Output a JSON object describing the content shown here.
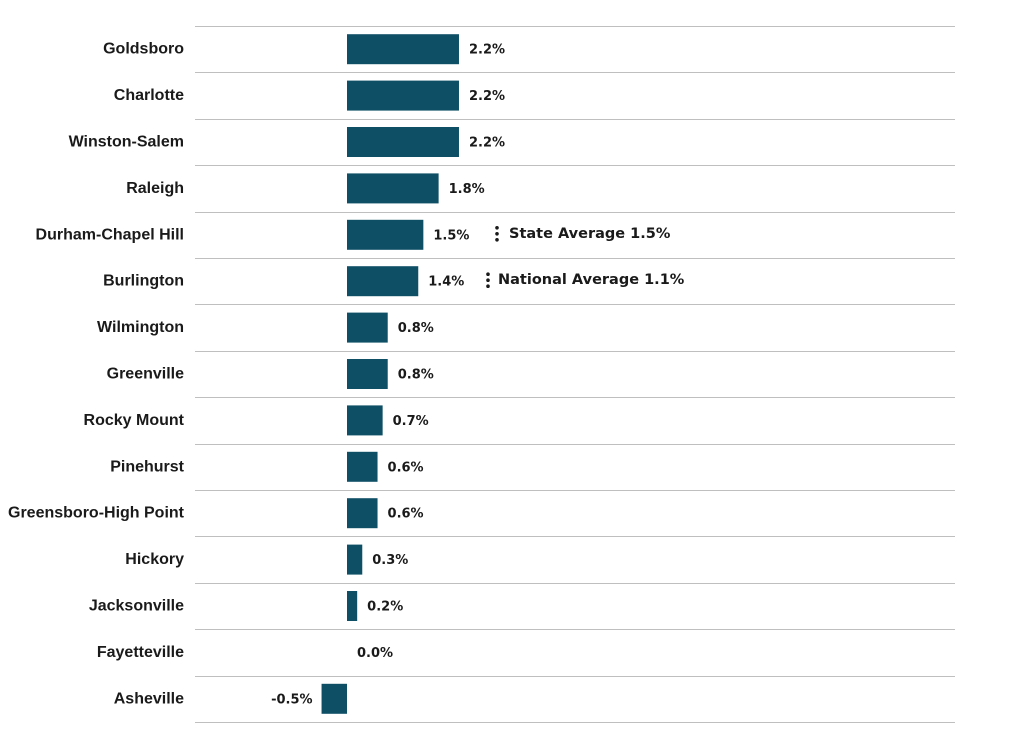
{
  "chart_data": {
    "type": "bar",
    "orientation": "horizontal",
    "categories": [
      "Goldsboro",
      "Charlotte",
      "Winston-Salem",
      "Raleigh",
      "Durham-Chapel Hill",
      "Burlington",
      "Wilmington",
      "Greenville",
      "Rocky Mount",
      "Pinehurst",
      "Greensboro-High Point",
      "Hickory",
      "Jacksonville",
      "Fayetteville",
      "Asheville"
    ],
    "values": [
      2.2,
      2.2,
      2.2,
      1.8,
      1.5,
      1.4,
      0.8,
      0.8,
      0.7,
      0.6,
      0.6,
      0.3,
      0.2,
      0.0,
      -0.5
    ],
    "value_labels": [
      "2.2%",
      "2.2%",
      "2.2%",
      "1.8%",
      "1.5%",
      "1.4%",
      "0.8%",
      "0.8%",
      "0.7%",
      "0.6%",
      "0.6%",
      "0.3%",
      "0.2%",
      "0.0%",
      "-0.5%"
    ],
    "bar_color": "#0e4f66",
    "grid": true,
    "legend": "none",
    "reference_lines": [
      {
        "label": "State Average 1.5%",
        "value": 1.5
      },
      {
        "label": "National Average 1.1%",
        "value": 1.1
      }
    ]
  }
}
